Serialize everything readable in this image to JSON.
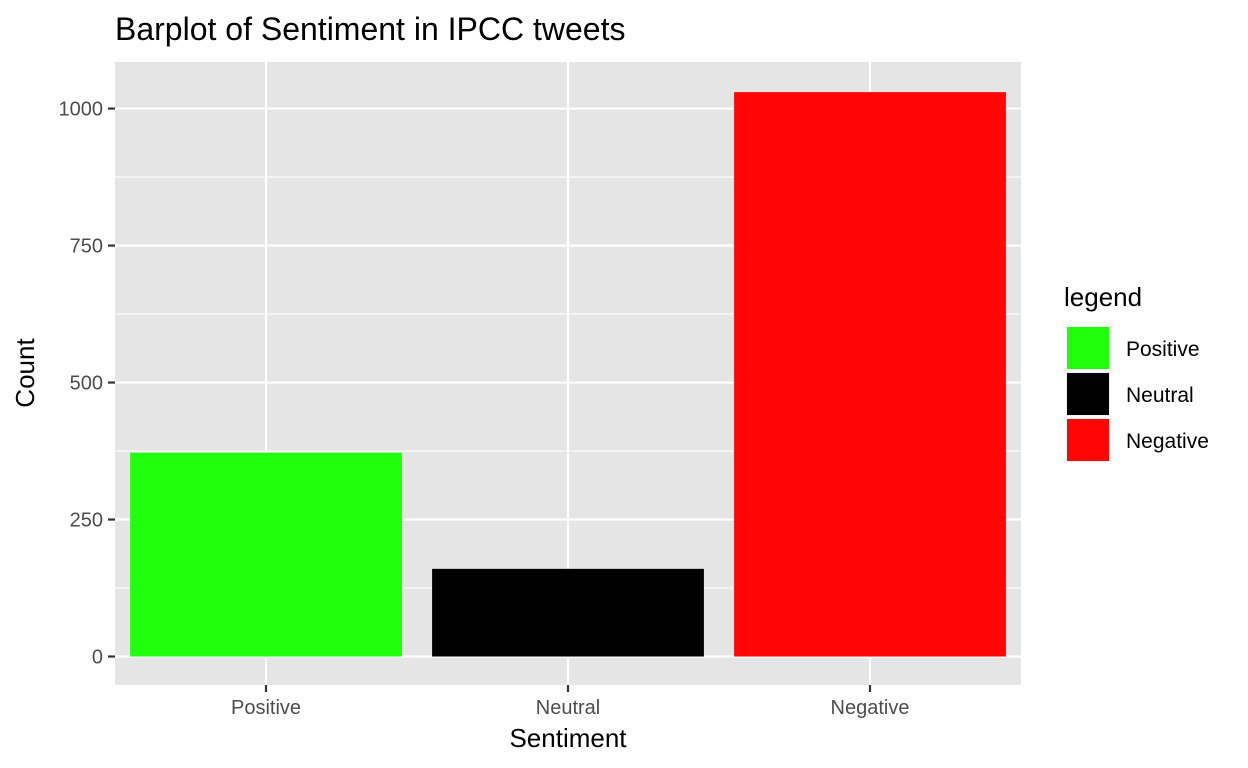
{
  "chart_data": {
    "type": "bar",
    "title": "Barplot of Sentiment in IPCC tweets",
    "xlabel": "Sentiment",
    "ylabel": "Count",
    "categories": [
      "Positive",
      "Neutral",
      "Negative"
    ],
    "values": [
      372,
      160,
      1030
    ],
    "colors": [
      "#22ff0d",
      "#000000",
      "#ff0505"
    ],
    "ylim": [
      -52,
      1085
    ],
    "yticks": [
      0,
      250,
      500,
      750,
      1000
    ],
    "yticks_minor": [
      125,
      375,
      625,
      875
    ],
    "grid": true,
    "panel_background": "#e5e5e5",
    "grid_color": "#ffffff",
    "legend": {
      "title": "legend",
      "position": "right",
      "entries": [
        {
          "label": "Positive",
          "color": "#22ff0d"
        },
        {
          "label": "Neutral",
          "color": "#000000"
        },
        {
          "label": "Negative",
          "color": "#ff0505"
        }
      ]
    }
  }
}
